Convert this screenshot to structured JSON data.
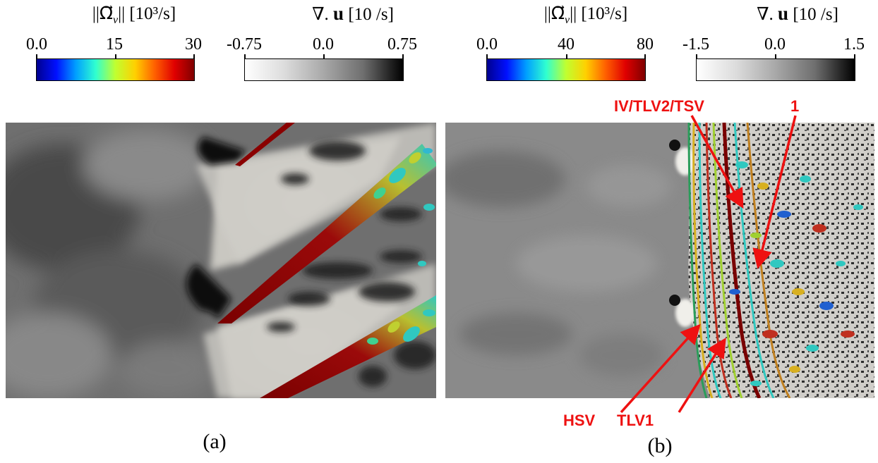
{
  "colorbars": [
    {
      "title_prefix": "||Ω⃗",
      "title_sub": "v",
      "title_suffix": "|| [10³/s]",
      "ticks": [
        "0.0",
        "15",
        "30"
      ],
      "colormap": "jet",
      "colors": [
        "#000090",
        "#0010ff",
        "#00a0ff",
        "#30ffd0",
        "#c0ff30",
        "#ffd000",
        "#ff6000",
        "#e00000",
        "#800000"
      ]
    },
    {
      "title_prefix": "∇. ",
      "title_bold": "u",
      "title_suffix": " [10  /s]",
      "ticks": [
        "-0.75",
        "0.0",
        "0.75"
      ],
      "colormap": "grayscale",
      "colors": [
        "#ffffff",
        "#dcdcdc",
        "#a8a8a8",
        "#6e6e6e",
        "#000000"
      ]
    },
    {
      "title_prefix": "||Ω⃗",
      "title_sub": "v",
      "title_suffix": "|| [10³/s]",
      "ticks": [
        "0.0",
        "40",
        "80"
      ],
      "colormap": "jet",
      "colors": [
        "#000090",
        "#0010ff",
        "#00a0ff",
        "#30ffd0",
        "#c0ff30",
        "#ffd000",
        "#ff6000",
        "#e00000",
        "#800000"
      ]
    },
    {
      "title_prefix": "∇. ",
      "title_bold": "u",
      "title_suffix": " [10  /s]",
      "ticks": [
        "-1.5",
        "0.0",
        "1.5"
      ],
      "colormap": "grayscale",
      "colors": [
        "#ffffff",
        "#dcdcdc",
        "#a8a8a8",
        "#6e6e6e",
        "#000000"
      ]
    }
  ],
  "panels": {
    "a": {
      "caption": "(a)"
    },
    "b": {
      "caption": "(b)",
      "annotations": {
        "iv_tlv2_tsv": "IV/TLV2/TSV",
        "one": "1",
        "hsv": "HSV",
        "tlv1": "TLV1"
      },
      "annotation_color": "#ee1111"
    }
  }
}
